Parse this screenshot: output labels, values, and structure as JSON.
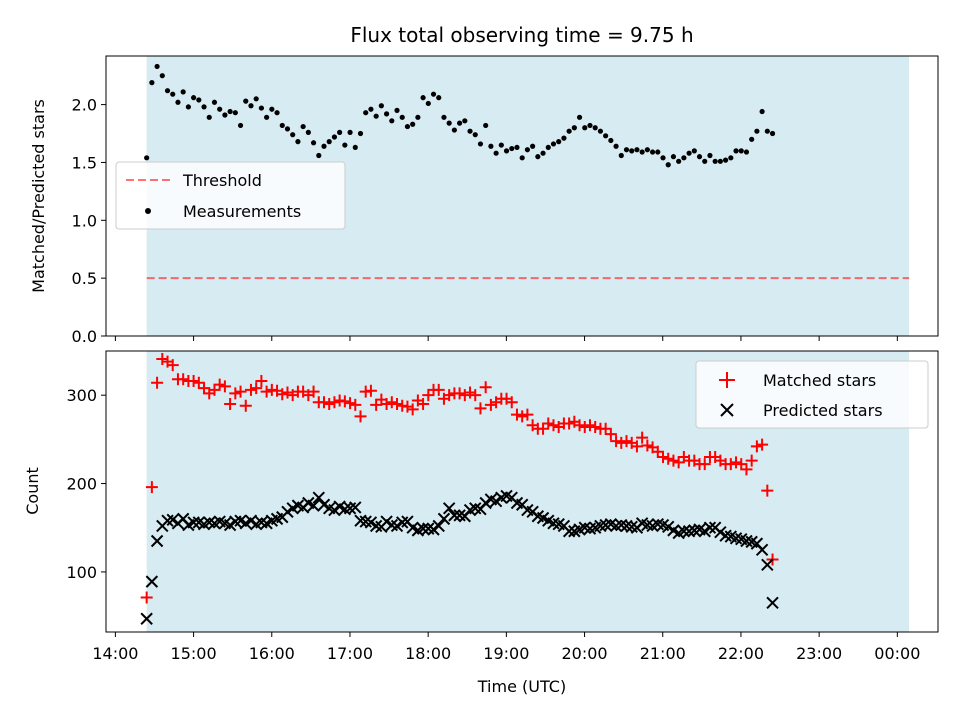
{
  "title": "Flux total observing time = 9.75 h",
  "colors": {
    "shade": "#add8e6",
    "threshold": "#ff0000",
    "measurements": "#000000",
    "matched": "#ff0000",
    "predicted": "#000000"
  },
  "chart_data": [
    {
      "type": "scatter",
      "ylabel": "Matched/Predicted stars",
      "xlim": [
        13.88,
        24.52
      ],
      "ylim": [
        0.0,
        2.42
      ],
      "x_ticks": [
        14,
        15,
        16,
        17,
        18,
        19,
        20,
        21,
        22,
        23,
        24
      ],
      "y_ticks": [
        0.0,
        0.5,
        1.0,
        1.5,
        2.0
      ],
      "y_tick_labels": [
        "0.0",
        "0.5",
        "1.0",
        "1.5",
        "2.0"
      ],
      "grid": false,
      "legend_position": "center-left",
      "observing_window": [
        14.4,
        24.15
      ],
      "threshold": {
        "name": "Threshold",
        "value": 0.5,
        "x_range": [
          14.4,
          24.15
        ],
        "style": "dashed"
      },
      "series": [
        {
          "name": "Measurements",
          "x_start": 14.4,
          "x_step": 0.0667,
          "values": [
            1.54,
            2.19,
            2.33,
            2.25,
            2.12,
            2.09,
            2.02,
            2.11,
            1.98,
            2.06,
            2.04,
            1.98,
            1.89,
            2.02,
            1.96,
            1.91,
            1.94,
            1.93,
            1.82,
            2.03,
            1.99,
            2.05,
            1.97,
            1.89,
            1.96,
            1.93,
            1.82,
            1.79,
            1.74,
            1.68,
            1.81,
            1.76,
            1.67,
            1.56,
            1.64,
            1.68,
            1.72,
            1.76,
            1.65,
            1.76,
            1.63,
            1.75,
            1.93,
            1.96,
            1.9,
            1.99,
            1.92,
            1.86,
            1.95,
            1.89,
            1.81,
            1.83,
            1.89,
            2.06,
            2.01,
            2.09,
            2.06,
            1.89,
            1.84,
            1.78,
            1.84,
            1.86,
            1.77,
            1.74,
            1.66,
            1.82,
            1.64,
            1.58,
            1.65,
            1.6,
            1.62,
            1.63,
            1.54,
            1.61,
            1.64,
            1.55,
            1.58,
            1.63,
            1.66,
            1.68,
            1.71,
            1.77,
            1.8,
            1.89,
            1.8,
            1.82,
            1.8,
            1.77,
            1.73,
            1.69,
            1.64,
            1.56,
            1.61,
            1.6,
            1.61,
            1.59,
            1.61,
            1.59,
            1.59,
            1.54,
            1.48,
            1.55,
            1.51,
            1.54,
            1.58,
            1.6,
            1.55,
            1.51,
            1.56,
            1.51,
            1.51,
            1.52,
            1.54,
            1.6,
            1.6,
            1.59,
            1.7,
            1.77,
            1.94,
            1.77,
            1.75
          ]
        }
      ]
    },
    {
      "type": "scatter",
      "xlabel": "Time (UTC)",
      "ylabel": "Count",
      "xlim": [
        13.88,
        24.52
      ],
      "ylim": [
        32,
        350
      ],
      "x_ticks": [
        14,
        15,
        16,
        17,
        18,
        19,
        20,
        21,
        22,
        23,
        24
      ],
      "x_tick_labels": [
        "14:00",
        "15:00",
        "16:00",
        "17:00",
        "18:00",
        "19:00",
        "20:00",
        "21:00",
        "22:00",
        "23:00",
        "00:00"
      ],
      "y_ticks": [
        100,
        200,
        300
      ],
      "y_tick_labels": [
        "100",
        "200",
        "300"
      ],
      "grid": false,
      "legend_position": "top-right",
      "observing_window": [
        14.4,
        24.15
      ],
      "series": [
        {
          "name": "Matched stars",
          "marker": "plus",
          "x_start": 14.4,
          "x_step": 0.0667,
          "values": [
            71,
            196,
            314,
            341,
            338,
            334,
            318,
            318,
            316,
            316,
            314,
            308,
            302,
            306,
            312,
            310,
            290,
            302,
            304,
            288,
            306,
            308,
            316,
            304,
            306,
            305,
            301,
            303,
            300,
            304,
            304,
            300,
            304,
            292,
            292,
            290,
            292,
            294,
            293,
            291,
            289,
            276,
            304,
            305,
            289,
            295,
            290,
            292,
            290,
            288,
            287,
            284,
            294,
            290,
            300,
            306,
            306,
            296,
            300,
            302,
            302,
            300,
            303,
            300,
            285,
            309,
            289,
            292,
            296,
            296,
            292,
            278,
            276,
            278,
            266,
            262,
            262,
            268,
            266,
            264,
            268,
            268,
            270,
            266,
            264,
            266,
            264,
            262,
            262,
            256,
            248,
            246,
            248,
            246,
            242,
            252,
            243,
            241,
            236,
            230,
            228,
            226,
            224,
            230,
            226,
            226,
            222,
            222,
            230,
            230,
            226,
            222,
            222,
            224,
            222,
            216,
            226,
            242,
            244,
            192,
            114
          ]
        },
        {
          "name": "Predicted stars",
          "marker": "x",
          "x_start": 14.4,
          "x_step": 0.0667,
          "values": [
            47,
            89,
            135,
            152,
            158,
            159,
            155,
            160,
            153,
            156,
            156,
            154,
            156,
            155,
            157,
            155,
            153,
            157,
            158,
            155,
            158,
            154,
            156,
            155,
            158,
            160,
            162,
            168,
            172,
            175,
            173,
            178,
            175,
            184,
            176,
            172,
            170,
            174,
            171,
            172,
            173,
            158,
            157,
            156,
            152,
            151,
            157,
            153,
            152,
            156,
            157,
            150,
            147,
            149,
            149,
            148,
            152,
            160,
            172,
            164,
            164,
            163,
            170,
            172,
            171,
            178,
            182,
            180,
            184,
            186,
            184,
            178,
            176,
            170,
            168,
            163,
            161,
            158,
            155,
            154,
            152,
            146,
            146,
            148,
            150,
            149,
            150,
            152,
            153,
            154,
            152,
            153,
            152,
            151,
            150,
            155,
            153,
            152,
            154,
            153,
            151,
            147,
            144,
            146,
            146,
            147,
            148,
            146,
            150,
            150,
            145,
            141,
            140,
            138,
            137,
            135,
            134,
            132,
            125,
            108,
            65
          ]
        }
      ]
    }
  ]
}
